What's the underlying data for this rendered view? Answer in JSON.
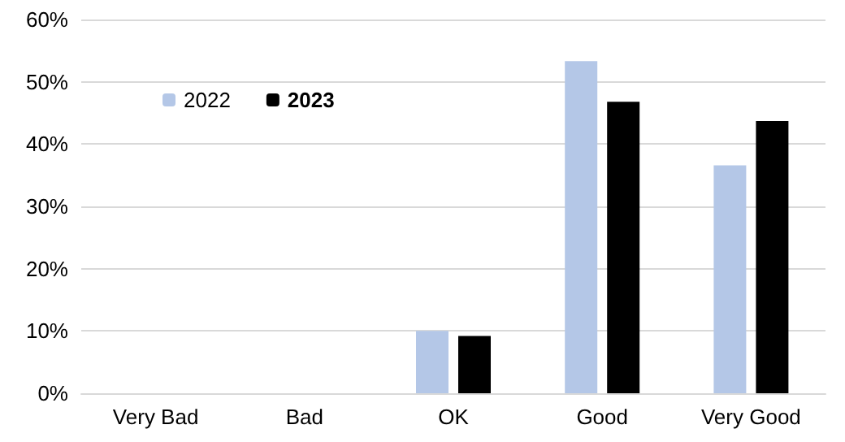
{
  "chart_data": {
    "type": "bar",
    "categories": [
      "Very Bad",
      "Bad",
      "OK",
      "Good",
      "Very Good"
    ],
    "series": [
      {
        "name": "2022",
        "color": "#b4c7e7",
        "values": [
          0,
          0,
          10,
          53.3,
          36.6
        ]
      },
      {
        "name": "2023",
        "color": "#000000",
        "values": [
          0,
          0,
          9.2,
          46.8,
          43.7
        ]
      }
    ],
    "ylim": [
      0,
      60
    ],
    "yticks": [
      {
        "value": 0,
        "label": "0%"
      },
      {
        "value": 10,
        "label": "10%"
      },
      {
        "value": 20,
        "label": "20%"
      },
      {
        "value": 30,
        "label": "30%"
      },
      {
        "value": 40,
        "label": "40%"
      },
      {
        "value": 50,
        "label": "50%"
      },
      {
        "value": 60,
        "label": "60%"
      }
    ],
    "grid": "y",
    "legend": "top left"
  }
}
